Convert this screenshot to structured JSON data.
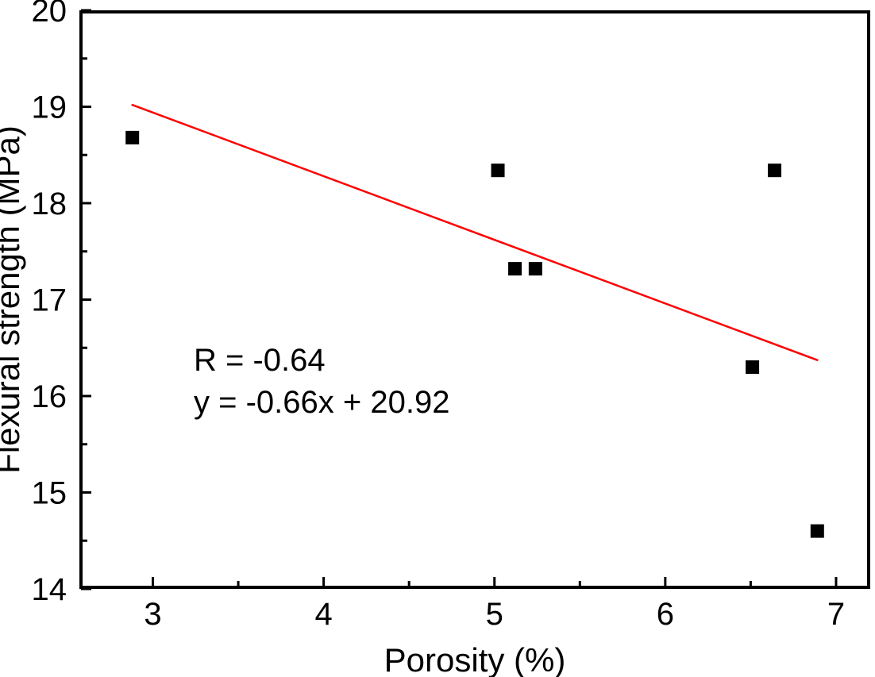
{
  "figure": {
    "background_color": "#ffffff",
    "axis_color": "#000000"
  },
  "chart_data": {
    "type": "scatter",
    "title": "",
    "xlabel": "Porosity (%)",
    "ylabel": "Flexural strength (MPa)",
    "xlim": [
      2.57,
      7.2
    ],
    "ylim": [
      14,
      20
    ],
    "x_ticks": [
      3,
      4,
      5,
      6,
      7
    ],
    "y_ticks": [
      14,
      15,
      16,
      17,
      18,
      19,
      20
    ],
    "x_minor_ticks": [
      3.5,
      4.5,
      5.5,
      6.5
    ],
    "y_minor_ticks": [
      14.5,
      15.5,
      16.5,
      17.5,
      18.5,
      19.5
    ],
    "grid": false,
    "legend": "none",
    "points": [
      {
        "x": 2.88,
        "y": 18.68
      },
      {
        "x": 5.02,
        "y": 18.34
      },
      {
        "x": 5.12,
        "y": 17.32
      },
      {
        "x": 5.24,
        "y": 17.32
      },
      {
        "x": 6.51,
        "y": 16.3
      },
      {
        "x": 6.64,
        "y": 18.34
      },
      {
        "x": 6.89,
        "y": 14.6
      }
    ],
    "marker": {
      "shape": "square",
      "color": "#000000",
      "size": 17
    },
    "fit_line": {
      "slope": -0.66,
      "intercept": 20.92,
      "x_start": 2.88,
      "x_end": 6.89,
      "color": "#ff0000",
      "width": 2.5
    },
    "annotation": {
      "line1": "R = -0.64",
      "line2": "y = -0.66x + 20.92"
    }
  }
}
